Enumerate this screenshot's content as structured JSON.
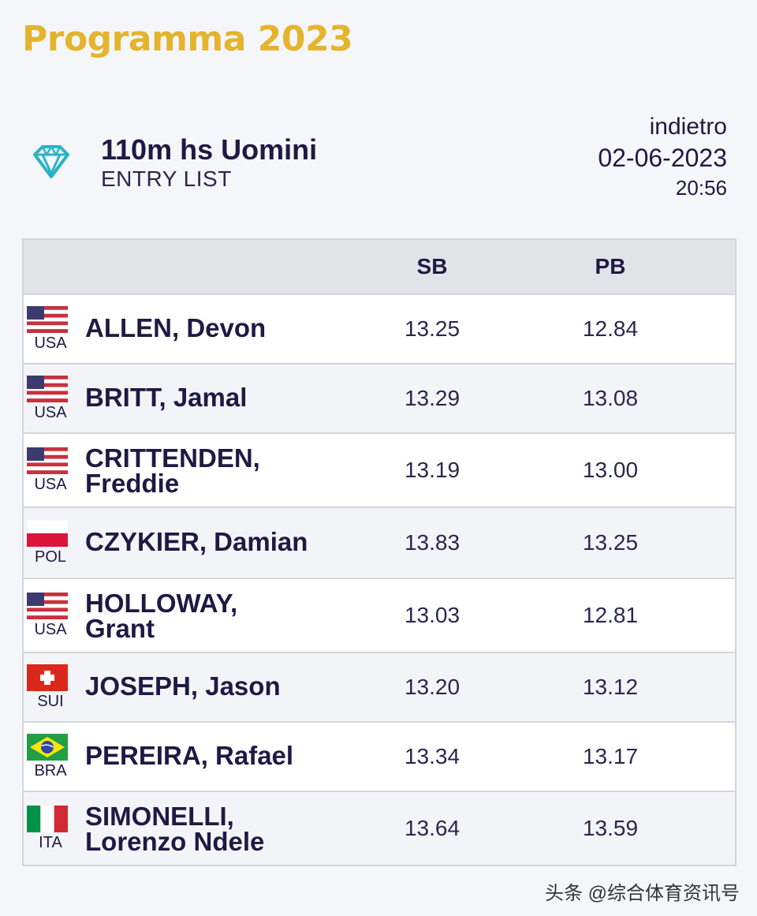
{
  "header": {
    "title": "Programma 2023"
  },
  "event": {
    "name": "110m hs Uomini",
    "subtitle": "ENTRY LIST",
    "icon": "diamond-league-icon"
  },
  "meta": {
    "back_label": "indietro",
    "date": "02-06-2023",
    "time": "20:56"
  },
  "table": {
    "columns": [
      "",
      "SB",
      "PB"
    ],
    "rows": [
      {
        "country": "USA",
        "flag": "usa-flag-icon",
        "name_line1": "ALLEN, Devon",
        "name_line2": "",
        "sb": "13.25",
        "pb": "12.84"
      },
      {
        "country": "USA",
        "flag": "usa-flag-icon",
        "name_line1": "BRITT, Jamal",
        "name_line2": "",
        "sb": "13.29",
        "pb": "13.08"
      },
      {
        "country": "USA",
        "flag": "usa-flag-icon",
        "name_line1": "CRITTENDEN,",
        "name_line2": "Freddie",
        "sb": "13.19",
        "pb": "13.00"
      },
      {
        "country": "POL",
        "flag": "poland-flag-icon",
        "name_line1": "CZYKIER, Damian",
        "name_line2": "",
        "sb": "13.83",
        "pb": "13.25"
      },
      {
        "country": "USA",
        "flag": "usa-flag-icon",
        "name_line1": "HOLLOWAY,",
        "name_line2": "Grant",
        "sb": "13.03",
        "pb": "12.81"
      },
      {
        "country": "SUI",
        "flag": "switzerland-flag-icon",
        "name_line1": "JOSEPH, Jason",
        "name_line2": "",
        "sb": "13.20",
        "pb": "13.12"
      },
      {
        "country": "BRA",
        "flag": "brazil-flag-icon",
        "name_line1": "PEREIRA, Rafael",
        "name_line2": "",
        "sb": "13.34",
        "pb": "13.17"
      },
      {
        "country": "ITA",
        "flag": "italy-flag-icon",
        "name_line1": "SIMONELLI,",
        "name_line2": "Lorenzo Ndele",
        "sb": "13.64",
        "pb": "13.59"
      }
    ]
  },
  "watermark": "头条 @综合体育资讯号",
  "colors": {
    "brand_gold": "#e4b42c",
    "text_navy": "#1d1a44",
    "diamond_teal": "#2ab3c6",
    "header_gray": "#e2e3e7"
  }
}
